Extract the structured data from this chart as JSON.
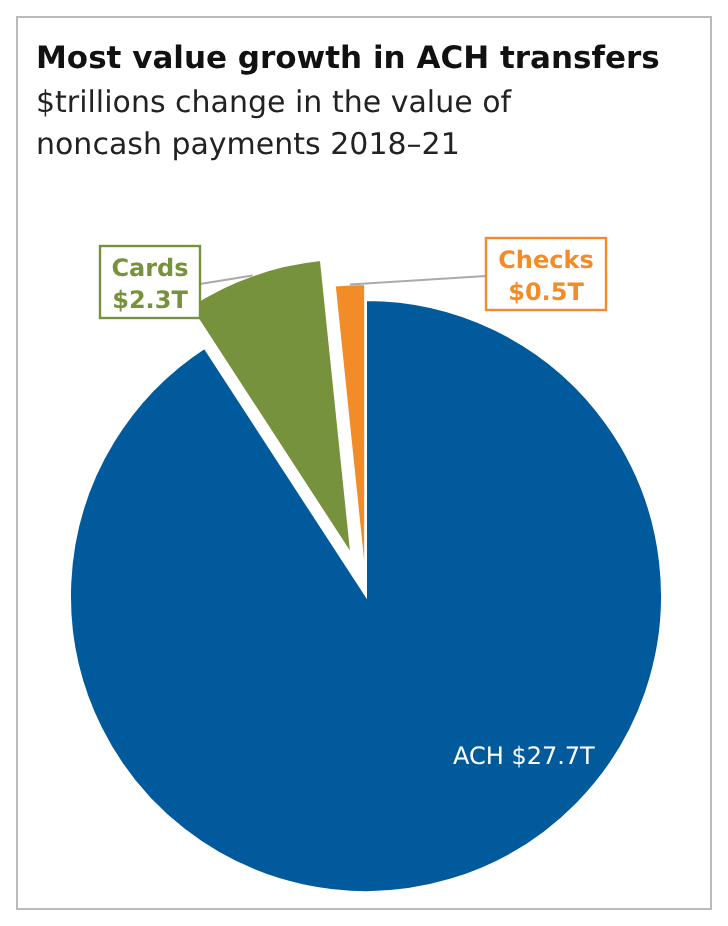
{
  "chart_data": {
    "type": "pie",
    "title": "Most value growth in ACH transfers",
    "subtitle": "$trillions change in the value of noncash payments 2018–21",
    "categories": [
      "ACH",
      "Cards",
      "Checks"
    ],
    "values": [
      27.7,
      2.3,
      0.5
    ],
    "colors": [
      "#005a9c",
      "#77923c",
      "#f28c28"
    ],
    "value_labels": [
      "$27.7T",
      "$2.3T",
      "$0.5T"
    ]
  }
}
